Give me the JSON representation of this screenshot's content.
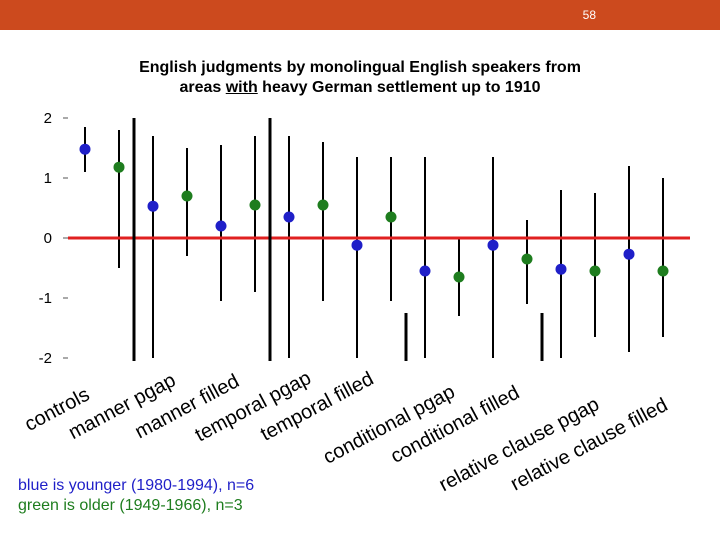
{
  "page_number": "58",
  "title": {
    "line1": "English judgments by monolingual English speakers from",
    "line2_pre": "areas ",
    "line2_em": "with",
    "line2_post": " heavy German settlement up to 1910"
  },
  "legend": {
    "blue": "blue is younger (1980-1994), n=6",
    "green": "green is older (1949-1966), n=3"
  },
  "colors": {
    "topbar": "#cc4a1e",
    "blue": "#1f1fc8",
    "green": "#1e7d1e",
    "zero_line": "#e02020"
  },
  "chart_data": {
    "type": "scatter",
    "title": "English judgments by monolingual English speakers from areas with heavy German settlement up to 1910",
    "ylim": [
      -2,
      2
    ],
    "yticks": [
      "2",
      "1",
      "0",
      "-1",
      "-2"
    ],
    "ytick_values": [
      2,
      1,
      0,
      -1,
      -2
    ],
    "categories": [
      "controls",
      "manner pgap",
      "manner filled",
      "temporal pgap",
      "temporal filled",
      "conditional pgap",
      "conditional filled",
      "relative clause pgap",
      "relative clause filled"
    ],
    "points": [
      {
        "group": "blue",
        "value": 1.48,
        "err_low": 1.1,
        "err_high": 1.85
      },
      {
        "group": "green",
        "value": 1.18,
        "err_low": -0.5,
        "err_high": 1.8
      },
      {
        "group": "blue",
        "value": 0.53,
        "err_low": -2.0,
        "err_high": 1.7
      },
      {
        "group": "green",
        "value": 0.7,
        "err_low": -0.3,
        "err_high": 1.5
      },
      {
        "group": "blue",
        "value": 0.2,
        "err_low": -1.05,
        "err_high": 1.55
      },
      {
        "group": "green",
        "value": 0.55,
        "err_low": -0.9,
        "err_high": 1.7
      },
      {
        "group": "blue",
        "value": 0.35,
        "err_low": -2.0,
        "err_high": 1.7
      },
      {
        "group": "green",
        "value": 0.55,
        "err_low": -1.05,
        "err_high": 1.6
      },
      {
        "group": "blue",
        "value": -0.12,
        "err_low": -2.0,
        "err_high": 1.35
      },
      {
        "group": "green",
        "value": 0.35,
        "err_low": -1.05,
        "err_high": 1.35
      },
      {
        "group": "blue",
        "value": -0.55,
        "err_low": -2.0,
        "err_high": 1.35
      },
      {
        "group": "green",
        "value": -0.65,
        "err_low": -1.3,
        "err_high": 0.0
      },
      {
        "group": "blue",
        "value": -0.12,
        "err_low": -2.0,
        "err_high": 1.35
      },
      {
        "group": "green",
        "value": -0.35,
        "err_low": -1.1,
        "err_high": 0.3
      },
      {
        "group": "blue",
        "value": -0.52,
        "err_low": -2.0,
        "err_high": 0.8
      },
      {
        "group": "green",
        "value": -0.55,
        "err_low": -1.65,
        "err_high": 0.75
      },
      {
        "group": "blue",
        "value": -0.27,
        "err_low": -1.9,
        "err_high": 1.2
      },
      {
        "group": "green",
        "value": -0.55,
        "err_low": -1.65,
        "err_high": 1.0
      }
    ],
    "x_labels": [
      {
        "word1": "controls",
        "word2": ""
      },
      {
        "word1": "manner",
        "word2": "pgap"
      },
      {
        "word1": "manner",
        "word2": "filled"
      },
      {
        "word1": "temporal",
        "word2": "pgap"
      },
      {
        "word1": "temporal",
        "word2": "filled"
      },
      {
        "word1": "conditional",
        "word2": "pgap"
      },
      {
        "word1": "conditional",
        "word2": "filled"
      },
      {
        "word1": "relative clause",
        "word2": "pgap"
      },
      {
        "word1": "relative clause",
        "word2": "filled"
      }
    ]
  }
}
